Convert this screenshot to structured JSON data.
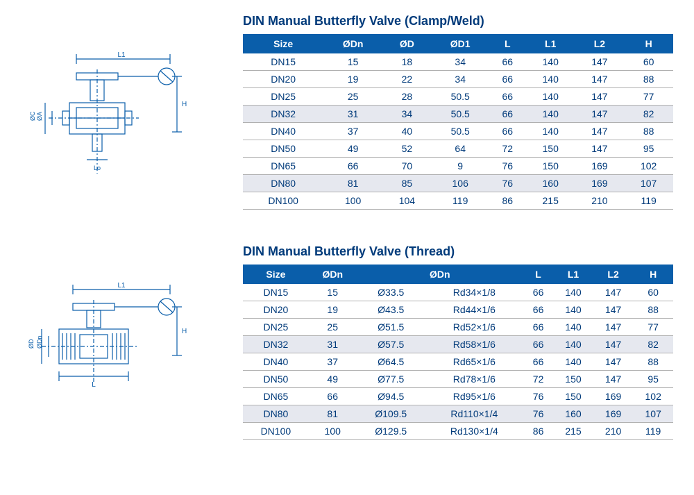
{
  "section1": {
    "title": "DIN Manual Butterfly Valve  (Clamp/Weld)",
    "diagram_labels": {
      "L1": "L1",
      "H": "H",
      "OC": "ØC",
      "OA": "ØA",
      "Lo": "Lo"
    },
    "columns": [
      "Size",
      "ØDn",
      "ØD",
      "ØD1",
      "L",
      "L1",
      "L2",
      "H"
    ],
    "rows": [
      [
        "DN15",
        "15",
        "18",
        "34",
        "66",
        "140",
        "147",
        "60"
      ],
      [
        "DN20",
        "19",
        "22",
        "34",
        "66",
        "140",
        "147",
        "88"
      ],
      [
        "DN25",
        "25",
        "28",
        "50.5",
        "66",
        "140",
        "147",
        "77"
      ],
      [
        "DN32",
        "31",
        "34",
        "50.5",
        "66",
        "140",
        "147",
        "82"
      ],
      [
        "DN40",
        "37",
        "40",
        "50.5",
        "66",
        "140",
        "147",
        "88"
      ],
      [
        "DN50",
        "49",
        "52",
        "64",
        "72",
        "150",
        "147",
        "95"
      ],
      [
        "DN65",
        "66",
        "70",
        "9",
        "76",
        "150",
        "169",
        "102"
      ],
      [
        "DN80",
        "81",
        "85",
        "106",
        "76",
        "160",
        "169",
        "107"
      ],
      [
        "DN100",
        "100",
        "104",
        "119",
        "86",
        "215",
        "210",
        "119"
      ]
    ],
    "alt_rows": [
      3,
      7
    ]
  },
  "section2": {
    "title": "DIN Manual Butterfly Valve  (Thread)",
    "diagram_labels": {
      "L1": "L1",
      "H": "H",
      "OD": "ØD",
      "ODn": "ØDn",
      "L": "L"
    },
    "columns": [
      "Size",
      "ØDn",
      "ØDn",
      "",
      "L",
      "L1",
      "L2",
      "H"
    ],
    "rows": [
      [
        "DN15",
        "15",
        "Ø33.5",
        "Rd34×1/8",
        "66",
        "140",
        "147",
        "60"
      ],
      [
        "DN20",
        "19",
        "Ø43.5",
        "Rd44×1/6",
        "66",
        "140",
        "147",
        "88"
      ],
      [
        "DN25",
        "25",
        "Ø51.5",
        "Rd52×1/6",
        "66",
        "140",
        "147",
        "77"
      ],
      [
        "DN32",
        "31",
        "Ø57.5",
        "Rd58×1/6",
        "66",
        "140",
        "147",
        "82"
      ],
      [
        "DN40",
        "37",
        "Ø64.5",
        "Rd65×1/6",
        "66",
        "140",
        "147",
        "88"
      ],
      [
        "DN50",
        "49",
        "Ø77.5",
        "Rd78×1/6",
        "72",
        "150",
        "147",
        "95"
      ],
      [
        "DN65",
        "66",
        "Ø94.5",
        "Rd95×1/6",
        "76",
        "150",
        "169",
        "102"
      ],
      [
        "DN80",
        "81",
        "Ø109.5",
        "Rd110×1/4",
        "76",
        "160",
        "169",
        "107"
      ],
      [
        "DN100",
        "100",
        "Ø129.5",
        "Rd130×1/4",
        "86",
        "215",
        "210",
        "119"
      ]
    ],
    "alt_rows": [
      3,
      7
    ]
  },
  "colors": {
    "header_bg": "#0a5eaa",
    "header_text": "#ffffff",
    "text": "#003a7a",
    "border": "#b0b0b0",
    "alt_row": "#e6e8ef",
    "diagram_stroke": "#0a5eaa"
  }
}
